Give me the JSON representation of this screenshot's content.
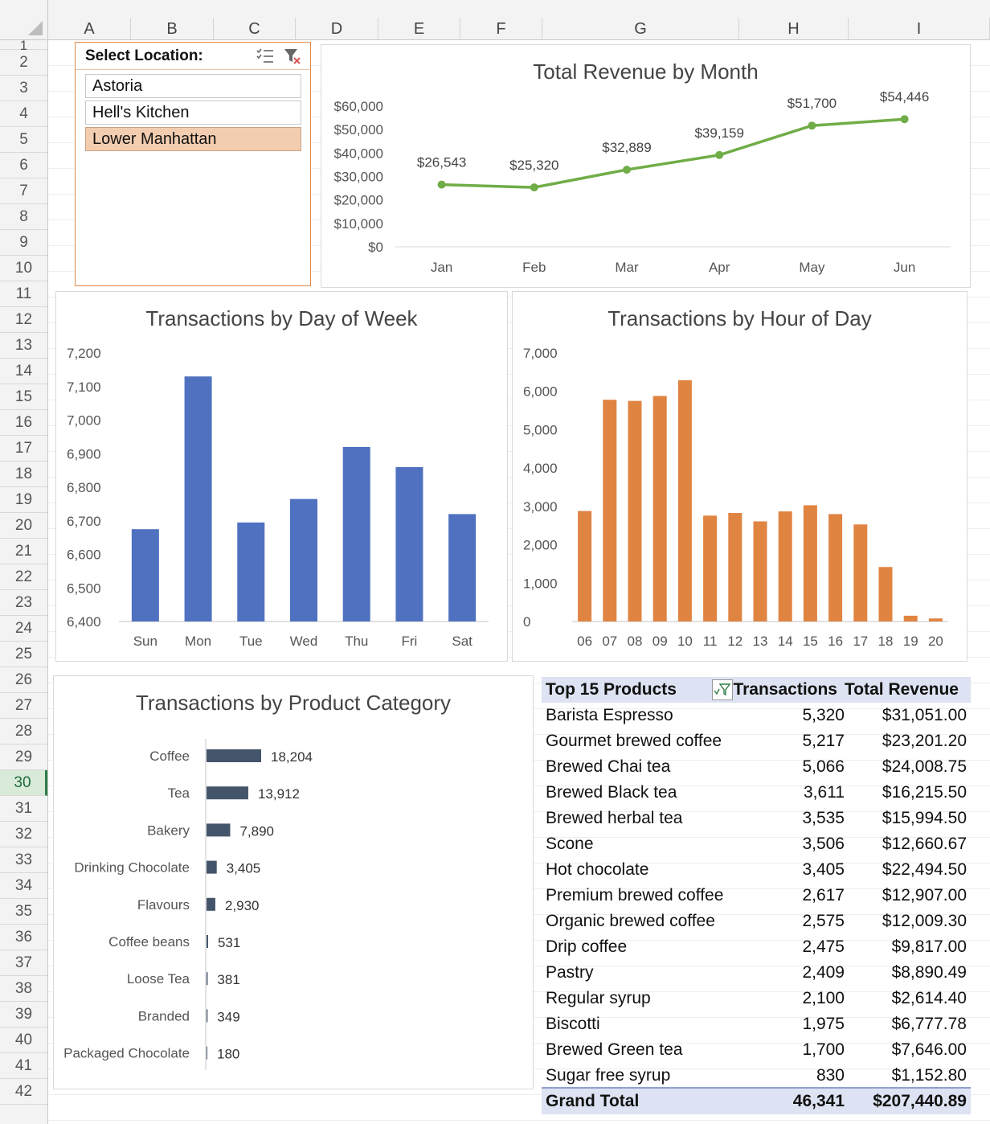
{
  "sheet": {
    "columns": [
      "A",
      "B",
      "C",
      "D",
      "E",
      "F",
      "G",
      "H",
      "I"
    ],
    "rows": [
      "1",
      "2",
      "3",
      "4",
      "5",
      "6",
      "7",
      "8",
      "9",
      "10",
      "11",
      "12",
      "13",
      "14",
      "15",
      "16",
      "17",
      "18",
      "19",
      "20",
      "21",
      "22",
      "23",
      "24",
      "25",
      "26",
      "27",
      "28",
      "29",
      "30",
      "31",
      "32",
      "33",
      "34",
      "35",
      "36",
      "37",
      "38",
      "39",
      "40",
      "41",
      "42"
    ],
    "active_row": "30"
  },
  "slicer": {
    "title": "Select Location:",
    "items": [
      {
        "label": "Astoria",
        "selected": false
      },
      {
        "label": "Hell's Kitchen",
        "selected": false
      },
      {
        "label": "Lower Manhattan",
        "selected": true
      }
    ]
  },
  "charts": {
    "revenue_by_month": {
      "title": "Total Revenue by Month",
      "y_ticks": [
        "$60,000",
        "$50,000",
        "$40,000",
        "$30,000",
        "$20,000",
        "$10,000",
        "$0"
      ],
      "data_labels": [
        "$26,543",
        "$25,320",
        "$32,889",
        "$39,159",
        "$51,700",
        "$54,446"
      ],
      "color": "#70ad47"
    },
    "by_day": {
      "title": "Transactions by Day of Week",
      "y_ticks": [
        "7,200",
        "7,100",
        "7,000",
        "6,900",
        "6,800",
        "6,700",
        "6,600",
        "6,500",
        "6,400"
      ],
      "color": "#4f71c0"
    },
    "by_hour": {
      "title": "Transactions by Hour of Day",
      "y_ticks": [
        "7,000",
        "6,000",
        "5,000",
        "4,000",
        "3,000",
        "2,000",
        "1,000",
        "0"
      ],
      "color": "#e08442"
    },
    "by_category": {
      "title": "Transactions by Product Category",
      "color": "#44546a"
    }
  },
  "chart_data": [
    {
      "type": "line",
      "title": "Total Revenue by Month",
      "categories": [
        "Jan",
        "Feb",
        "Mar",
        "Apr",
        "May",
        "Jun"
      ],
      "values": [
        26543,
        25320,
        32889,
        39159,
        51700,
        54446
      ],
      "ylim": [
        0,
        60000
      ],
      "grid": false
    },
    {
      "type": "bar",
      "title": "Transactions by Day of Week",
      "categories": [
        "Sun",
        "Mon",
        "Tue",
        "Wed",
        "Thu",
        "Fri",
        "Sat"
      ],
      "values": [
        6675,
        7130,
        6695,
        6765,
        6920,
        6860,
        6720
      ],
      "ylim": [
        6400,
        7200
      ]
    },
    {
      "type": "bar",
      "title": "Transactions by Hour of Day",
      "categories": [
        "06",
        "07",
        "08",
        "09",
        "10",
        "11",
        "12",
        "13",
        "14",
        "15",
        "16",
        "17",
        "18",
        "19",
        "20"
      ],
      "values": [
        2880,
        5780,
        5750,
        5880,
        6290,
        2760,
        2830,
        2610,
        2870,
        3030,
        2800,
        2530,
        1420,
        150,
        80
      ],
      "ylim": [
        0,
        7000
      ]
    },
    {
      "type": "bar",
      "orientation": "horizontal",
      "title": "Transactions by Product Category",
      "categories": [
        "Coffee",
        "Tea",
        "Bakery",
        "Drinking Chocolate",
        "Flavours",
        "Coffee beans",
        "Loose Tea",
        "Branded",
        "Packaged Chocolate"
      ],
      "values": [
        18204,
        13912,
        7890,
        3405,
        2930,
        531,
        381,
        349,
        180
      ],
      "value_labels": [
        "18,204",
        "13,912",
        "7,890",
        "3,405",
        "2,930",
        "531",
        "381",
        "349",
        "180"
      ]
    }
  ],
  "pivot": {
    "headers": {
      "name": "Top 15 Products",
      "transactions": "Transactions",
      "revenue": "Total Revenue"
    },
    "rows": [
      {
        "name": "Barista Espresso",
        "transactions": "5,320",
        "revenue": "$31,051.00"
      },
      {
        "name": "Gourmet brewed coffee",
        "transactions": "5,217",
        "revenue": "$23,201.20"
      },
      {
        "name": "Brewed Chai tea",
        "transactions": "5,066",
        "revenue": "$24,008.75"
      },
      {
        "name": "Brewed Black tea",
        "transactions": "3,611",
        "revenue": "$16,215.50"
      },
      {
        "name": "Brewed herbal tea",
        "transactions": "3,535",
        "revenue": "$15,994.50"
      },
      {
        "name": "Scone",
        "transactions": "3,506",
        "revenue": "$12,660.67"
      },
      {
        "name": "Hot chocolate",
        "transactions": "3,405",
        "revenue": "$22,494.50"
      },
      {
        "name": "Premium brewed coffee",
        "transactions": "2,617",
        "revenue": "$12,907.00"
      },
      {
        "name": "Organic brewed coffee",
        "transactions": "2,575",
        "revenue": "$12,009.30"
      },
      {
        "name": "Drip coffee",
        "transactions": "2,475",
        "revenue": "$9,817.00"
      },
      {
        "name": "Pastry",
        "transactions": "2,409",
        "revenue": "$8,890.49"
      },
      {
        "name": "Regular syrup",
        "transactions": "2,100",
        "revenue": "$2,614.40"
      },
      {
        "name": "Biscotti",
        "transactions": "1,975",
        "revenue": "$6,777.78"
      },
      {
        "name": "Brewed Green tea",
        "transactions": "1,700",
        "revenue": "$7,646.00"
      },
      {
        "name": "Sugar free syrup",
        "transactions": "830",
        "revenue": "$1,152.80"
      }
    ],
    "total": {
      "name": "Grand Total",
      "transactions": "46,341",
      "revenue": "$207,440.89"
    }
  }
}
